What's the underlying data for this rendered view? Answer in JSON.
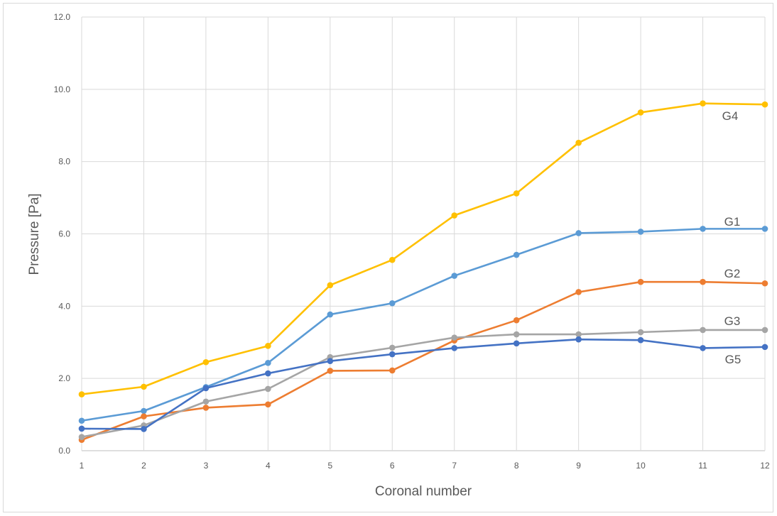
{
  "chart_data": {
    "type": "line",
    "title": "",
    "xlabel": "Coronal number",
    "ylabel": "Pressure [Pa]",
    "x": [
      1,
      2,
      3,
      4,
      5,
      6,
      7,
      8,
      9,
      10,
      11,
      12
    ],
    "x_tick_labels": [
      "1",
      "2",
      "3",
      "4",
      "5",
      "6",
      "7",
      "8",
      "9",
      "10",
      "11",
      "12"
    ],
    "y_tick_labels": [
      "0.0",
      "2.0",
      "4.0",
      "6.0",
      "8.0",
      "10.0",
      "12.0"
    ],
    "ylim": [
      0,
      12
    ],
    "grid": true,
    "legend": "inline labels at right end of lines",
    "series": [
      {
        "name": "G1",
        "color": "#5B9BD5",
        "values": [
          0.83,
          1.1,
          1.76,
          2.43,
          3.77,
          4.08,
          4.84,
          5.42,
          6.02,
          6.06,
          6.14,
          6.14
        ]
      },
      {
        "name": "G2",
        "color": "#ED7D31",
        "values": [
          0.3,
          0.95,
          1.19,
          1.28,
          2.21,
          2.22,
          3.05,
          3.61,
          4.39,
          4.67,
          4.67,
          4.63
        ]
      },
      {
        "name": "G3",
        "color": "#A5A5A5",
        "values": [
          0.38,
          0.7,
          1.36,
          1.71,
          2.59,
          2.85,
          3.13,
          3.22,
          3.22,
          3.28,
          3.34,
          3.34
        ]
      },
      {
        "name": "G4",
        "color": "#FFC000",
        "values": [
          1.56,
          1.77,
          2.45,
          2.9,
          4.58,
          5.28,
          6.51,
          7.12,
          8.52,
          9.36,
          9.61,
          9.58
        ]
      },
      {
        "name": "G5",
        "color": "#4472C4",
        "values": [
          0.61,
          0.6,
          1.73,
          2.14,
          2.48,
          2.67,
          2.84,
          2.97,
          3.08,
          3.06,
          2.84,
          2.87
        ]
      }
    ]
  }
}
